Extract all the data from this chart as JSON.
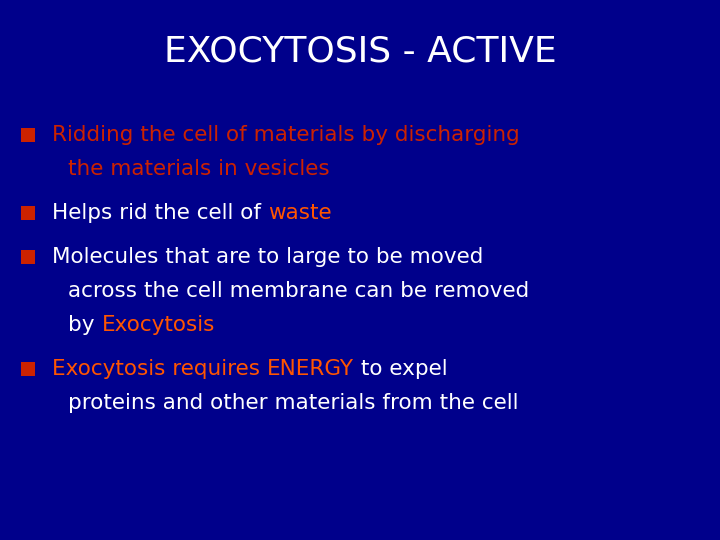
{
  "title": "EXOCYTOSIS - ACTIVE",
  "title_color": "#FFFFFF",
  "title_fontsize": 26,
  "bg_color": "#00008B",
  "bullet_square_color": "#CC2200",
  "white_color": "#FFFFFF",
  "orange_color": "#FF5500",
  "text_fontsize": 15.5,
  "bullet_fontsize": 13,
  "figsize": [
    7.2,
    5.4
  ],
  "dpi": 100,
  "bullets": [
    {
      "lines": [
        {
          "parts": [
            {
              "text": "Ridding the cell of materials by discharging",
              "color": "#CC2200"
            }
          ]
        },
        {
          "parts": [
            {
              "text": "the materials in vesicles",
              "color": "#CC2200"
            }
          ]
        }
      ]
    },
    {
      "lines": [
        {
          "parts": [
            {
              "text": "Helps rid the cell of ",
              "color": "#FFFFFF"
            },
            {
              "text": "waste",
              "color": "#FF5500"
            }
          ]
        }
      ]
    },
    {
      "lines": [
        {
          "parts": [
            {
              "text": "Molecules that are to large to be moved",
              "color": "#FFFFFF"
            }
          ]
        },
        {
          "parts": [
            {
              "text": "across the cell membrane can be removed",
              "color": "#FFFFFF"
            }
          ]
        },
        {
          "parts": [
            {
              "text": "by ",
              "color": "#FFFFFF"
            },
            {
              "text": "Exocytosis",
              "color": "#FF5500"
            }
          ]
        }
      ]
    },
    {
      "lines": [
        {
          "parts": [
            {
              "text": "Exocytosis requires ",
              "color": "#FF5500"
            },
            {
              "text": "ENERGY",
              "color": "#FF5500"
            },
            {
              "text": " to expel",
              "color": "#FFFFFF"
            }
          ]
        },
        {
          "parts": [
            {
              "text": "proteins and other materials from the cell",
              "color": "#FFFFFF"
            }
          ]
        }
      ]
    }
  ]
}
